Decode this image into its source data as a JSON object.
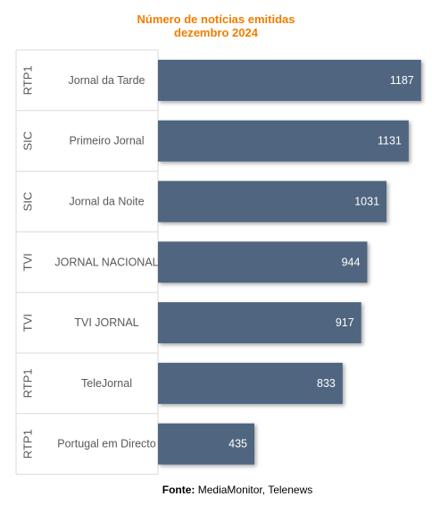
{
  "chart_data": {
    "type": "bar",
    "orientation": "horizontal",
    "title": "Número de notícias emitidas",
    "subtitle": "dezembro 2024",
    "channels": [
      "RTP1",
      "SIC",
      "SIC",
      "TVI",
      "TVI",
      "RTP1",
      "RTP1"
    ],
    "categories": [
      "Jornal da Tarde",
      "Primeiro Jornal",
      "Jornal da Noite",
      "JORNAL NACIONAL",
      "TVI JORNAL",
      "TeleJornal",
      "Portugal em Directo"
    ],
    "values": [
      1187,
      1131,
      1031,
      944,
      917,
      833,
      435
    ],
    "value_labels": [
      "1187",
      "1131",
      "1031",
      "944",
      "917",
      "833",
      "435"
    ],
    "xlim": [
      0,
      1200
    ],
    "bar_color": "#4f6580",
    "value_label_color": "#ffffff",
    "title_color": "#f07d00",
    "grid": false,
    "legend": "none"
  },
  "source": {
    "label": "Fonte:",
    "text": "MediaMonitor, Telenews"
  }
}
